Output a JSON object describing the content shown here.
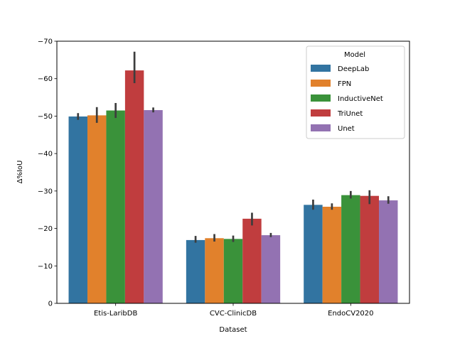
{
  "chart_data": {
    "type": "bar",
    "xlabel": "Dataset",
    "ylabel": "Δ%IoU",
    "ylim": [
      0,
      -70
    ],
    "yticks": [
      0,
      -10,
      -20,
      -30,
      -40,
      -50,
      -60,
      -70
    ],
    "ytick_labels": [
      "0",
      "−10",
      "−20",
      "−30",
      "−40",
      "−50",
      "−60",
      "−70"
    ],
    "categories": [
      "Etis-LaribDB",
      "CVC-ClinicDB",
      "EndoCV2020"
    ],
    "legend": {
      "title": "Model",
      "placement": "upper right"
    },
    "series": [
      {
        "name": "DeepLab",
        "color": "#3274a1",
        "values": [
          -49.9,
          -16.9,
          -26.3
        ],
        "err_low": [
          -49.0,
          -16.2,
          -25.0
        ],
        "err_high": [
          -50.8,
          -18.0,
          -27.7
        ]
      },
      {
        "name": "FPN",
        "color": "#e1812c",
        "values": [
          -50.2,
          -17.4,
          -25.8
        ],
        "err_low": [
          -48.2,
          -16.5,
          -25.0
        ],
        "err_high": [
          -52.4,
          -18.5,
          -26.7
        ]
      },
      {
        "name": "InductiveNet",
        "color": "#3a923a",
        "values": [
          -51.5,
          -17.2,
          -28.9
        ],
        "err_low": [
          -49.5,
          -16.4,
          -28.0
        ],
        "err_high": [
          -53.5,
          -18.1,
          -30.0
        ]
      },
      {
        "name": "TriUnet",
        "color": "#c03d3e",
        "values": [
          -62.2,
          -22.6,
          -28.7
        ],
        "err_low": [
          -58.8,
          -20.8,
          -26.5
        ],
        "err_high": [
          -67.2,
          -24.2,
          -30.2
        ]
      },
      {
        "name": "Unet",
        "color": "#9372b2",
        "values": [
          -51.6,
          -18.2,
          -27.5
        ],
        "err_low": [
          -51.0,
          -17.7,
          -26.6
        ],
        "err_high": [
          -52.3,
          -18.8,
          -28.6
        ]
      }
    ]
  }
}
